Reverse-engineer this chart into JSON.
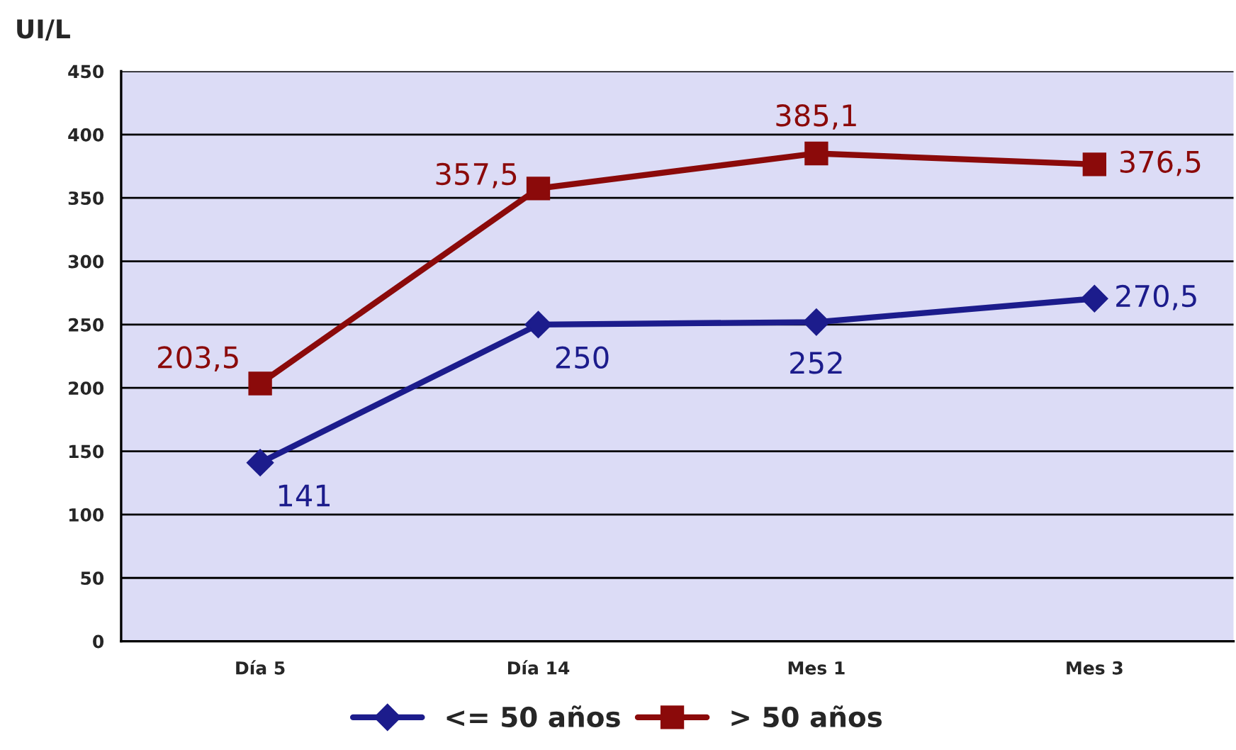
{
  "chart_data": {
    "type": "line",
    "ylabel": "UI/L",
    "categories": [
      "Día 5",
      "Día 14",
      "Mes 1",
      "Mes 3"
    ],
    "series": [
      {
        "name": "<= 50 años",
        "color": "#1c1c8c",
        "marker": "diamond",
        "values": [
          141,
          250,
          252,
          270.5
        ],
        "value_labels": [
          "141",
          "250",
          "252",
          "270,5"
        ]
      },
      {
        "name": "> 50 años",
        "color": "#8b0a0a",
        "marker": "square",
        "values": [
          203.5,
          357.5,
          385.1,
          376.5
        ],
        "value_labels": [
          "203,5",
          "357,5",
          "385,1",
          "376,5"
        ]
      }
    ],
    "ylim": [
      0,
      450
    ],
    "yticks": [
      0,
      50,
      100,
      150,
      200,
      250,
      300,
      350,
      400,
      450
    ],
    "grid": "y",
    "legend": "bottom",
    "line_style": "solid"
  }
}
